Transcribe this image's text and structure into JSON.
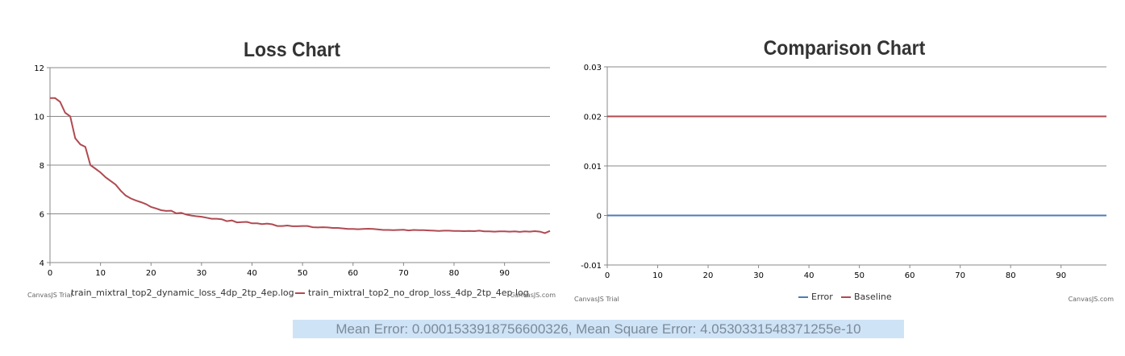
{
  "colors": {
    "red": "#b04a52",
    "blue": "#4a7db7",
    "grid": "#888888"
  },
  "chart_data": [
    {
      "type": "line",
      "title": "Loss Chart",
      "xlim": [
        0,
        99
      ],
      "ylim": [
        4,
        12
      ],
      "x_ticks": [
        0,
        10,
        20,
        30,
        40,
        50,
        60,
        70,
        80,
        90
      ],
      "y_ticks": [
        4,
        6,
        8,
        10,
        12
      ],
      "grid": true,
      "legend_placement": "bottom",
      "credit_left": "CanvasJS Trial",
      "credit_right": "CanvasJS.com",
      "series": [
        {
          "name": "train_mixtral_top2_dynamic_loss_4dp_2tp_4ep.log",
          "color": "#b04a52",
          "x": [
            0,
            1,
            2,
            3,
            4,
            5,
            6,
            7,
            8,
            9,
            10,
            11,
            12,
            13,
            14,
            15,
            16,
            17,
            18,
            19,
            20,
            21,
            22,
            23,
            24,
            25,
            26,
            27,
            28,
            29,
            30,
            31,
            32,
            33,
            34,
            35,
            36,
            37,
            38,
            39,
            40,
            41,
            42,
            43,
            44,
            45,
            46,
            47,
            48,
            49,
            50,
            51,
            52,
            53,
            54,
            55,
            56,
            57,
            58,
            59,
            60,
            61,
            62,
            63,
            64,
            65,
            66,
            67,
            68,
            69,
            70,
            71,
            72,
            73,
            74,
            75,
            76,
            77,
            78,
            79,
            80,
            81,
            82,
            83,
            84,
            85,
            86,
            87,
            88,
            89,
            90,
            91,
            92,
            93,
            94,
            95,
            96,
            97,
            98,
            99
          ],
          "values": [
            10.75,
            10.75,
            10.6,
            10.15,
            10.0,
            9.1,
            8.85,
            8.75,
            8.0,
            7.85,
            7.7,
            7.5,
            7.35,
            7.2,
            6.95,
            6.75,
            6.63,
            6.55,
            6.48,
            6.4,
            6.28,
            6.22,
            6.15,
            6.12,
            6.13,
            6.02,
            6.04,
            5.97,
            5.93,
            5.9,
            5.88,
            5.84,
            5.8,
            5.8,
            5.78,
            5.7,
            5.73,
            5.65,
            5.66,
            5.67,
            5.61,
            5.61,
            5.58,
            5.6,
            5.57,
            5.5,
            5.5,
            5.52,
            5.49,
            5.49,
            5.5,
            5.5,
            5.45,
            5.44,
            5.45,
            5.44,
            5.42,
            5.42,
            5.4,
            5.38,
            5.38,
            5.37,
            5.38,
            5.39,
            5.38,
            5.36,
            5.34,
            5.34,
            5.33,
            5.34,
            5.35,
            5.32,
            5.34,
            5.33,
            5.33,
            5.32,
            5.31,
            5.3,
            5.31,
            5.31,
            5.3,
            5.3,
            5.29,
            5.3,
            5.29,
            5.31,
            5.28,
            5.28,
            5.27,
            5.28,
            5.28,
            5.27,
            5.28,
            5.26,
            5.28,
            5.27,
            5.29,
            5.27,
            5.21,
            5.3
          ]
        },
        {
          "name": "train_mixtral_top2_no_drop_loss_4dp_2tp_4ep.log",
          "color": "#b04a52"
        }
      ]
    },
    {
      "type": "line",
      "title": "Comparison Chart",
      "xlim": [
        0,
        99
      ],
      "ylim": [
        -0.01,
        0.03
      ],
      "x_ticks": [
        0,
        10,
        20,
        30,
        40,
        50,
        60,
        70,
        80,
        90
      ],
      "y_ticks": [
        -0.01,
        0,
        0.01,
        0.02,
        0.03
      ],
      "grid": true,
      "legend_placement": "bottom",
      "credit_left": "CanvasJS Trial",
      "credit_right": "CanvasJS.com",
      "series": [
        {
          "name": "Error",
          "color": "#4a7db7",
          "constant": 0
        },
        {
          "name": "Baseline",
          "color": "#b04a52",
          "constant": 0.02
        }
      ]
    }
  ],
  "summary": "Mean Error: 0.0001533918756600326, Mean Square Error: 4.0530331548371255e-10"
}
